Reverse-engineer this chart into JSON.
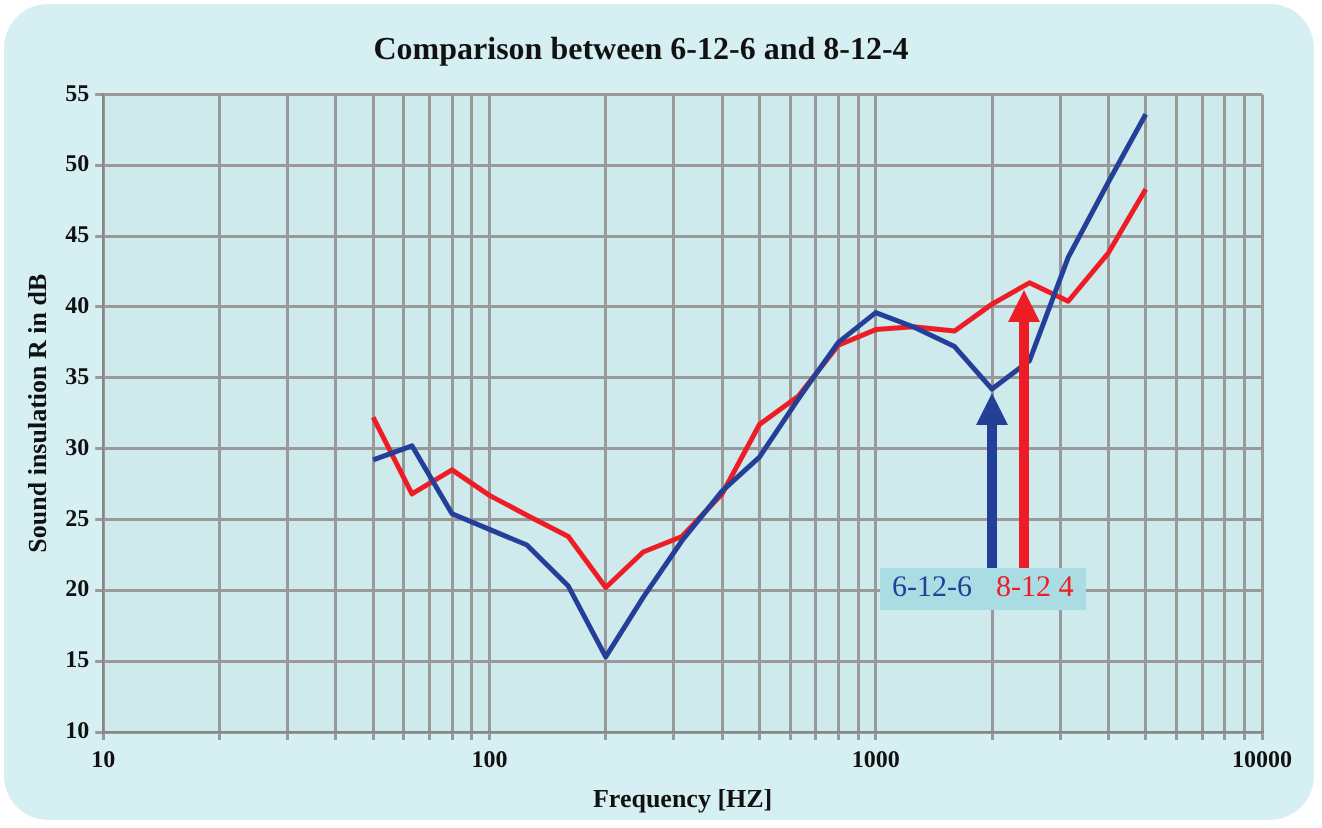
{
  "chart_data": {
    "type": "line",
    "title": "Comparison between 6-12-6 and 8-12-4",
    "xlabel": "Frequency [HZ]",
    "ylabel": "Sound insulation R in dB",
    "x": [
      50,
      63,
      80,
      100,
      125,
      160,
      200,
      250,
      315,
      400,
      500,
      630,
      800,
      1000,
      1250,
      1600,
      2000,
      2500,
      3150,
      4000,
      5000
    ],
    "series": [
      {
        "name": "6-12-6",
        "color": "#233f97",
        "values": [
          29.2,
          30.2,
          25.4,
          24.3,
          23.2,
          20.3,
          15.3,
          19.5,
          23.5,
          27,
          29.4,
          33.5,
          37.5,
          39.6,
          38.6,
          37.2,
          34.2,
          36.2,
          43.5,
          48.8,
          53.6
        ]
      },
      {
        "name": "8-12 4",
        "color": "#ee1c25",
        "values": [
          32.2,
          26.8,
          28.5,
          26.7,
          25.3,
          23.8,
          20.2,
          22.7,
          23.8,
          26.8,
          31.7,
          33.7,
          37.3,
          38.4,
          38.6,
          38.3,
          40.2,
          41.7,
          40.4,
          43.8,
          48.3
        ]
      }
    ],
    "log": "x",
    "xlim": [
      10,
      10000
    ],
    "ylim": [
      10,
      55
    ],
    "xticks": [
      10,
      {
        "value": 20,
        "label": null
      },
      {
        "value": 30,
        "label": null
      },
      {
        "value": 40,
        "label": null
      },
      {
        "value": 50,
        "label": null
      },
      {
        "value": 60,
        "label": null
      },
      {
        "value": 70,
        "label": null
      },
      {
        "value": 80,
        "label": null
      },
      {
        "value": 90,
        "label": null
      },
      100,
      {
        "value": 200,
        "label": null
      },
      {
        "value": 300,
        "label": null
      },
      {
        "value": 400,
        "label": null
      },
      {
        "value": 500,
        "label": null
      },
      {
        "value": 600,
        "label": null
      },
      {
        "value": 700,
        "label": null
      },
      {
        "value": 800,
        "label": null
      },
      {
        "value": 900,
        "label": null
      },
      1000,
      {
        "value": 2000,
        "label": null
      },
      {
        "value": 3000,
        "label": null
      },
      {
        "value": 4000,
        "label": null
      },
      {
        "value": 5000,
        "label": null
      },
      {
        "value": 6000,
        "label": null
      },
      {
        "value": 7000,
        "label": null
      },
      {
        "value": 8000,
        "label": null
      },
      {
        "value": 9000,
        "label": null
      },
      10000
    ],
    "yticks": [
      10,
      15,
      20,
      25,
      30,
      35,
      40,
      45,
      50,
      55
    ],
    "grid": true,
    "legend": "bottom right",
    "marker": "none",
    "line_style": "solid"
  }
}
